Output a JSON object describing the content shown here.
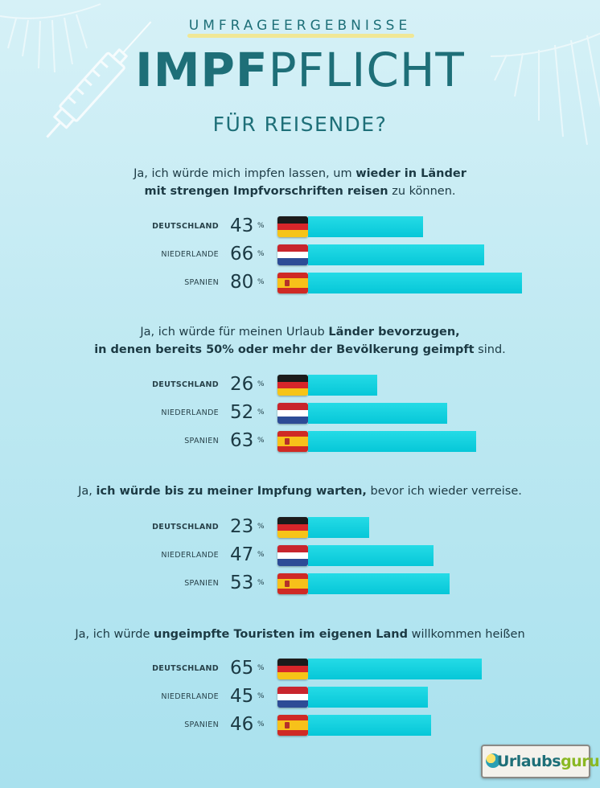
{
  "header": {
    "kicker": "UMFRAGEERGEBNISSE",
    "title_bold": "IMPF",
    "title_rest": "PFLICHT",
    "subtitle": "FÜR REISENDE?"
  },
  "colors": {
    "bar": "#0ccfde",
    "title": "#1e6f78",
    "background": "#c4ebf3"
  },
  "icons": [
    "syringe-icon",
    "palm-leaf-icon",
    "flag-de-icon",
    "flag-nl-icon",
    "flag-es-icon"
  ],
  "percent_sign": "%",
  "logo": {
    "part1": "Urlaubs",
    "part2": "guru"
  },
  "chart_data": [
    {
      "type": "bar",
      "question": [
        {
          "t": "Ja, ich würde mich impfen lassen, um ",
          "b": false
        },
        {
          "t": "wieder in Länder",
          "b": true
        },
        {
          "t": "\n",
          "b": false
        },
        {
          "t": "mit strengen Impfvorschriften reisen",
          "b": true
        },
        {
          "t": " zu können.",
          "b": false
        }
      ],
      "categories": [
        "DEUTSCHLAND",
        "NIEDERLANDE",
        "SPANIEN"
      ],
      "values": [
        43,
        66,
        80
      ],
      "unit": "%"
    },
    {
      "type": "bar",
      "question": [
        {
          "t": "Ja, ich würde für meinen Urlaub ",
          "b": false
        },
        {
          "t": "Länder bevorzugen,",
          "b": true
        },
        {
          "t": "\n",
          "b": false
        },
        {
          "t": "in denen bereits 50% oder mehr der Bevölkerung geimpft",
          "b": true
        },
        {
          "t": " sind.",
          "b": false
        }
      ],
      "categories": [
        "DEUTSCHLAND",
        "NIEDERLANDE",
        "SPANIEN"
      ],
      "values": [
        26,
        52,
        63
      ],
      "unit": "%"
    },
    {
      "type": "bar",
      "question": [
        {
          "t": "Ja, ",
          "b": false
        },
        {
          "t": "ich würde bis zu meiner Impfung warten,",
          "b": true
        },
        {
          "t": " bevor ich wieder verreise.",
          "b": false
        }
      ],
      "categories": [
        "DEUTSCHLAND",
        "NIEDERLANDE",
        "SPANIEN"
      ],
      "values": [
        23,
        47,
        53
      ],
      "unit": "%"
    },
    {
      "type": "bar",
      "question": [
        {
          "t": "Ja, ich würde ",
          "b": false
        },
        {
          "t": "ungeimpfte Touristen im eigenen Land",
          "b": true
        },
        {
          "t": " willkommen heißen",
          "b": false
        }
      ],
      "categories": [
        "DEUTSCHLAND",
        "NIEDERLANDE",
        "SPANIEN"
      ],
      "values": [
        65,
        45,
        46
      ],
      "unit": "%"
    }
  ]
}
